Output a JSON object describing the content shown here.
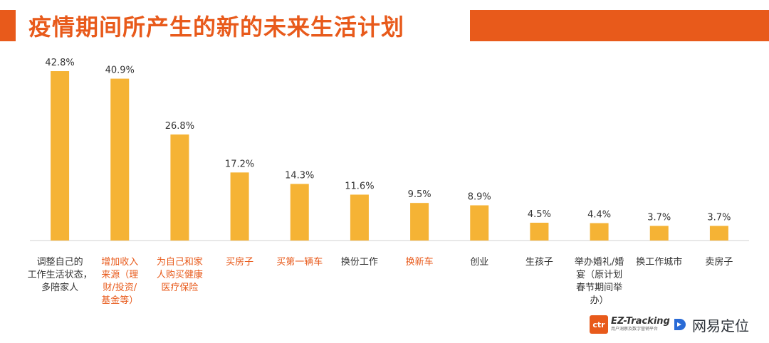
{
  "title": "疫情期间所产生的新的未来生活计划",
  "colors": {
    "accent": "#E85A1B",
    "bar": "#F5B335",
    "label_default": "#333333",
    "label_highlight": "#E85A1B"
  },
  "chart_data": {
    "type": "bar",
    "categories": [
      "调整自己的工作生活状态，多陪家人",
      "增加收入来源（理财/投资/基金等）",
      "为自己和家人购买健康医疗保险",
      "买房子",
      "买第一辆车",
      "换份工作",
      "换新车",
      "创业",
      "生孩子",
      "举办婚礼/婚宴（原计划春节期间举办）",
      "换工作城市",
      "卖房子"
    ],
    "category_lines": [
      [
        "调整自己的",
        "工作生活状态，",
        "多陪家人"
      ],
      [
        "增加收入",
        "来源（理",
        "财/投资/",
        "基金等）"
      ],
      [
        "为自己和家",
        "人购买健康",
        "医疗保险"
      ],
      [
        "买房子"
      ],
      [
        "买第一辆车"
      ],
      [
        "换份工作"
      ],
      [
        "换新车"
      ],
      [
        "创业"
      ],
      [
        "生孩子"
      ],
      [
        "举办婚礼/婚",
        "宴（原计划",
        "春节期间举",
        "办）"
      ],
      [
        "换工作城市"
      ],
      [
        "卖房子"
      ]
    ],
    "highlighted": [
      false,
      true,
      true,
      true,
      true,
      false,
      true,
      false,
      false,
      false,
      false,
      false
    ],
    "values": [
      42.8,
      40.9,
      26.8,
      17.2,
      14.3,
      11.6,
      9.5,
      8.9,
      4.5,
      4.4,
      3.7,
      3.7
    ],
    "value_labels": [
      "42.8%",
      "40.9%",
      "26.8%",
      "17.2%",
      "14.3%",
      "11.6%",
      "9.5%",
      "8.9%",
      "4.5%",
      "4.4%",
      "3.7%",
      "3.7%"
    ],
    "unit": "%",
    "ylim": [
      0,
      45
    ],
    "grid": false,
    "legend": "none"
  },
  "branding": {
    "ctr_badge": "ctr",
    "ez_name": "EZ-Tracking",
    "ez_sub": "用户洞察及数字营销平台",
    "wy_name": "网易定位"
  }
}
